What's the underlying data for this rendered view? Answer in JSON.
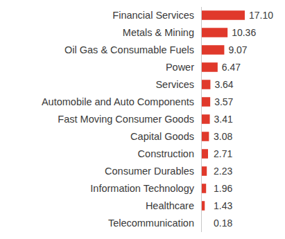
{
  "chart_data": {
    "type": "bar",
    "orientation": "horizontal",
    "categories": [
      "Financial Services",
      "Metals & Mining",
      "Oil Gas & Consumable Fuels",
      "Power",
      "Services",
      "Automobile and Auto Components",
      "Fast Moving Consumer Goods",
      "Capital Goods",
      "Construction",
      "Consumer Durables",
      "Information Technology",
      "Healthcare",
      "Telecommunication"
    ],
    "values": [
      17.1,
      10.36,
      9.07,
      6.47,
      3.64,
      3.57,
      3.41,
      3.08,
      2.71,
      2.23,
      1.96,
      1.43,
      0.18
    ],
    "value_labels": [
      "17.10",
      "10.36",
      "9.07",
      "6.47",
      "3.64",
      "3.57",
      "3.41",
      "3.08",
      "2.71",
      "2.23",
      "1.96",
      "1.43",
      "0.18"
    ],
    "color": "#e0392b",
    "xlim": [
      0,
      17.1
    ],
    "data_labels": true,
    "tick_labels": false
  }
}
